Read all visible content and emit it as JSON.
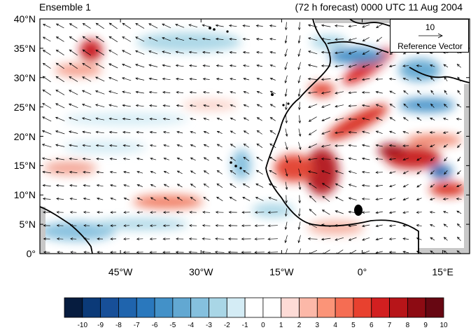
{
  "title_left": "Ensemble 1",
  "title_right": "(72 h forecast) 0000 UTC 11 Aug 2004",
  "map": {
    "lon_range": [
      -60,
      20
    ],
    "lat_range": [
      0,
      40
    ],
    "lat_ticks": [
      "0°",
      "5°N",
      "10°N",
      "15°N",
      "20°N",
      "25°N",
      "30°N",
      "35°N",
      "40°N"
    ],
    "lon_ticks": [
      "45°W",
      "30°W",
      "15°W",
      "0°",
      "15°E"
    ],
    "wind_arrow_color": "#000000",
    "coastline_color": "#000000"
  },
  "reference_vector": {
    "value": "10",
    "label": "Reference Vector"
  },
  "colorbar": {
    "labels": [
      "-10",
      "-9",
      "-8",
      "-7",
      "-6",
      "-5",
      "-4",
      "-3",
      "-2",
      "-1",
      "0",
      "1",
      "2",
      "3",
      "4",
      "5",
      "6",
      "7",
      "8",
      "9",
      "10"
    ],
    "colors": [
      "#061c3f",
      "#0b3a78",
      "#174f98",
      "#1f64ad",
      "#2a78bd",
      "#4391c8",
      "#62a8d2",
      "#85c0de",
      "#a9d6e6",
      "#d4ecf5",
      "#ffffff",
      "#ffffff",
      "#fddbd6",
      "#fcb8a8",
      "#fb9478",
      "#f56d53",
      "#e8412f",
      "#d21f20",
      "#b71519",
      "#8d0b13",
      "#670712"
    ]
  }
}
